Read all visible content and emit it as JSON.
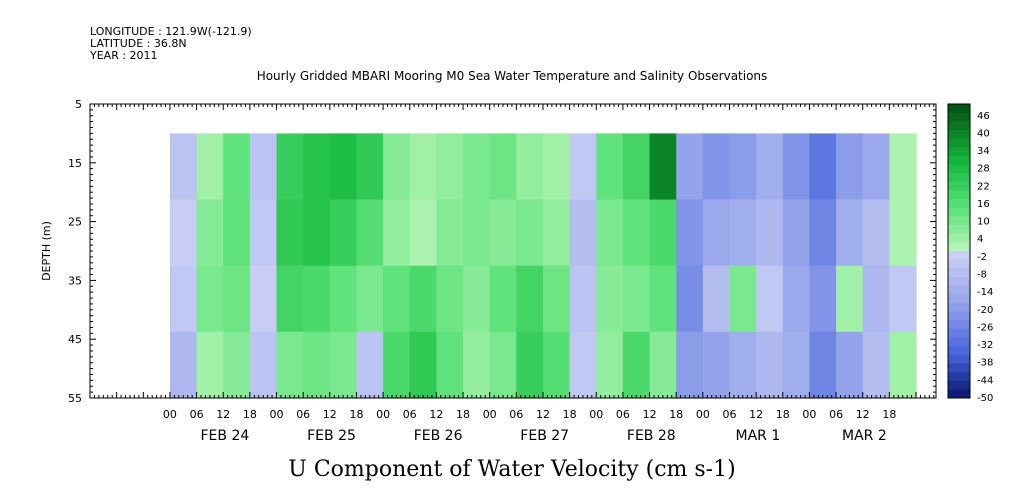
{
  "header": {
    "longitude": "LONGITUDE : 121.9W(-121.9)",
    "latitude": "LATITUDE : 36.8N",
    "year": "YEAR : 2011"
  },
  "chart_data": {
    "type": "heatmap",
    "title": "Hourly Gridded MBARI Mooring M0 Sea Water Temperature and Salinity Observations",
    "variable_label": "U Component of Water Velocity (cm s-1)",
    "ylabel": "DEPTH (m)",
    "y_reversed": true,
    "ylim": [
      5,
      55
    ],
    "y_ticks": [
      "5",
      "15",
      "25",
      "35",
      "45",
      "55"
    ],
    "data_depth_range": [
      10,
      55
    ],
    "x_hour_ticks": [
      "00",
      "06",
      "12",
      "18",
      "00",
      "06",
      "12",
      "18",
      "00",
      "06",
      "12",
      "18",
      "00",
      "06",
      "12",
      "18",
      "00",
      "06",
      "12",
      "18",
      "00",
      "06",
      "12",
      "18",
      "00",
      "06",
      "12",
      "18"
    ],
    "x_day_labels": [
      "FEB 24",
      "FEB 25",
      "FEB 26",
      "FEB 27",
      "FEB 28",
      "MAR  1",
      "MAR  2"
    ],
    "colorbar": {
      "min": -50,
      "max": 50,
      "tick_labels": [
        "46",
        "40",
        "34",
        "28",
        "22",
        "16",
        "10",
        "4",
        "-2",
        "-8",
        "-14",
        "-20",
        "-26",
        "-32",
        "-38",
        "-44",
        "-50"
      ],
      "negative_color": "#3355dd",
      "positive_color": "#0a8a2a"
    },
    "depths": [
      12,
      25,
      38,
      51
    ],
    "time_hours": [
      3,
      9,
      15,
      21,
      27,
      33,
      39,
      45,
      51,
      57,
      63,
      69,
      75,
      81,
      87,
      93,
      99,
      105,
      111,
      117,
      123,
      129,
      135,
      141,
      147,
      153,
      159,
      165
    ],
    "u_values": [
      [
        -6,
        4,
        14,
        -6,
        22,
        26,
        28,
        24,
        8,
        4,
        6,
        10,
        12,
        6,
        4,
        -4,
        14,
        20,
        40,
        -18,
        -22,
        -20,
        -14,
        -22,
        -30,
        -20,
        -16,
        2
      ],
      [
        -2,
        8,
        14,
        -4,
        24,
        26,
        22,
        16,
        6,
        2,
        8,
        10,
        8,
        10,
        6,
        -8,
        10,
        14,
        18,
        -22,
        -16,
        -14,
        -10,
        -18,
        -26,
        -14,
        -8,
        2
      ],
      [
        -4,
        10,
        12,
        -2,
        20,
        18,
        14,
        10,
        14,
        18,
        12,
        8,
        14,
        20,
        12,
        -6,
        8,
        10,
        14,
        -24,
        -8,
        10,
        -4,
        -16,
        -22,
        4,
        -10,
        -4
      ],
      [
        -10,
        4,
        8,
        -6,
        10,
        12,
        10,
        -6,
        18,
        24,
        14,
        6,
        10,
        22,
        16,
        -4,
        6,
        18,
        8,
        -20,
        -18,
        -14,
        -10,
        -14,
        -26,
        -18,
        -8,
        4
      ]
    ]
  }
}
